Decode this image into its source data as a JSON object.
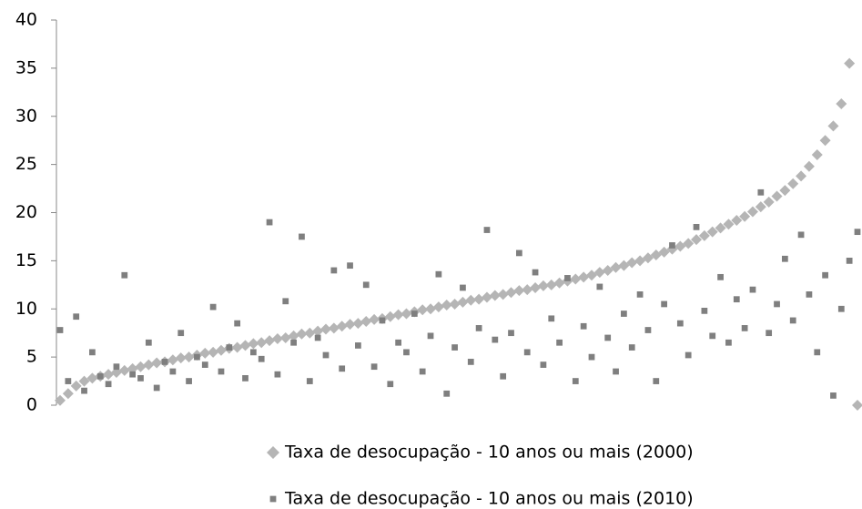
{
  "chart_data": {
    "type": "scatter",
    "ylim": [
      0,
      40
    ],
    "yticks": [
      0,
      5,
      10,
      15,
      20,
      25,
      30,
      35,
      40
    ],
    "legend": "bottom",
    "series": [
      {
        "name": "Taxa de desocupação - 10 anos ou mais (2000)",
        "color": "#b5b5b5",
        "marker": "diamond",
        "values": [
          0.5,
          1.2,
          2.0,
          2.5,
          2.8,
          3.0,
          3.2,
          3.4,
          3.6,
          3.8,
          4.0,
          4.2,
          4.4,
          4.5,
          4.7,
          4.9,
          5.0,
          5.2,
          5.4,
          5.5,
          5.7,
          5.9,
          6.0,
          6.2,
          6.4,
          6.5,
          6.7,
          6.9,
          7.0,
          7.2,
          7.4,
          7.5,
          7.7,
          7.9,
          8.0,
          8.2,
          8.4,
          8.5,
          8.7,
          8.9,
          9.0,
          9.2,
          9.4,
          9.5,
          9.7,
          9.9,
          10.0,
          10.2,
          10.4,
          10.5,
          10.7,
          10.9,
          11.0,
          11.2,
          11.4,
          11.5,
          11.7,
          11.9,
          12.0,
          12.2,
          12.4,
          12.5,
          12.7,
          12.9,
          13.1,
          13.3,
          13.5,
          13.8,
          14.0,
          14.3,
          14.5,
          14.8,
          15.0,
          15.3,
          15.6,
          15.9,
          16.2,
          16.5,
          16.8,
          17.2,
          17.6,
          18.0,
          18.4,
          18.8,
          19.2,
          19.6,
          20.1,
          20.6,
          21.1,
          21.7,
          22.3,
          23.0,
          23.8,
          24.8,
          26.0,
          27.5,
          29.0,
          31.3,
          35.5,
          0
        ]
      },
      {
        "name": "Taxa de desocupação - 10 anos ou mais (2010)",
        "color": "#7f7f7f",
        "marker": "square",
        "values": [
          7.8,
          2.5,
          9.2,
          1.5,
          5.5,
          3.0,
          2.2,
          4.0,
          13.5,
          3.2,
          2.8,
          6.5,
          1.8,
          4.5,
          3.5,
          7.5,
          2.5,
          5.0,
          4.2,
          10.2,
          3.5,
          6.0,
          8.5,
          2.8,
          5.5,
          4.8,
          19.0,
          3.2,
          10.8,
          6.5,
          17.5,
          2.5,
          7.0,
          5.2,
          14.0,
          3.8,
          14.5,
          6.2,
          12.5,
          4.0,
          8.8,
          2.2,
          6.5,
          5.5,
          9.5,
          3.5,
          7.2,
          13.6,
          1.2,
          6.0,
          12.2,
          4.5,
          8.0,
          18.2,
          6.8,
          3.0,
          7.5,
          15.8,
          5.5,
          13.8,
          4.2,
          9.0,
          6.5,
          13.2,
          2.5,
          8.2,
          5.0,
          12.3,
          7.0,
          3.5,
          9.5,
          6.0,
          11.5,
          7.8,
          2.5,
          10.5,
          16.6,
          8.5,
          5.2,
          18.5,
          9.8,
          7.2,
          13.3,
          6.5,
          11.0,
          8.0,
          12.0,
          22.1,
          7.5,
          10.5,
          15.2,
          8.8,
          17.7,
          11.5,
          5.5,
          13.5,
          1.0,
          10.0,
          15.0,
          18.0
        ]
      }
    ]
  }
}
